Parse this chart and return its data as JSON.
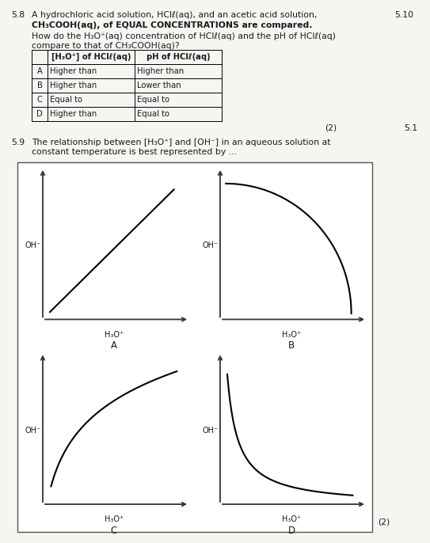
{
  "page_bg": "#f5f5f2",
  "q58_number": "5.8",
  "q58_text_line1": "A hydrochloric acid solution, HClℓ(aq), and an acetic acid solution,",
  "q58_text_line2": "CH₃COOH(aq), of EQUAL CONCENTRATIONS are compared.",
  "q58_subtext1": "How do the H₃O⁺(aq) concentration of HClℓ(aq) and the pH of HClℓ(aq)",
  "q58_subtext2": "compare to that of CH₃COOH(aq)?",
  "header_col1": "[H₃O⁺] of HClℓ(aq)",
  "header_col2": "pH of HClℓ(aq)",
  "table_rows": [
    [
      "A",
      "Higher than",
      "Higher than"
    ],
    [
      "B",
      "Higher than",
      "Lower than"
    ],
    [
      "C",
      "Equal to",
      "Equal to"
    ],
    [
      "D",
      "Higher than",
      "Equal to"
    ]
  ],
  "q58_marks": "(2)",
  "side_top": "5.10",
  "side_bottom": "5.1",
  "q59_number": "5.9",
  "q59_line1": "The relationship between [H₃O⁺] and [OH⁻] in an aqueous solution at",
  "q59_line2": "constant temperature is best represented by ...",
  "q59_marks": "(2)",
  "xlabel": "H₃O⁺",
  "ylabel": "OH⁻",
  "graph_labels": [
    "A",
    "B",
    "C",
    "D"
  ]
}
